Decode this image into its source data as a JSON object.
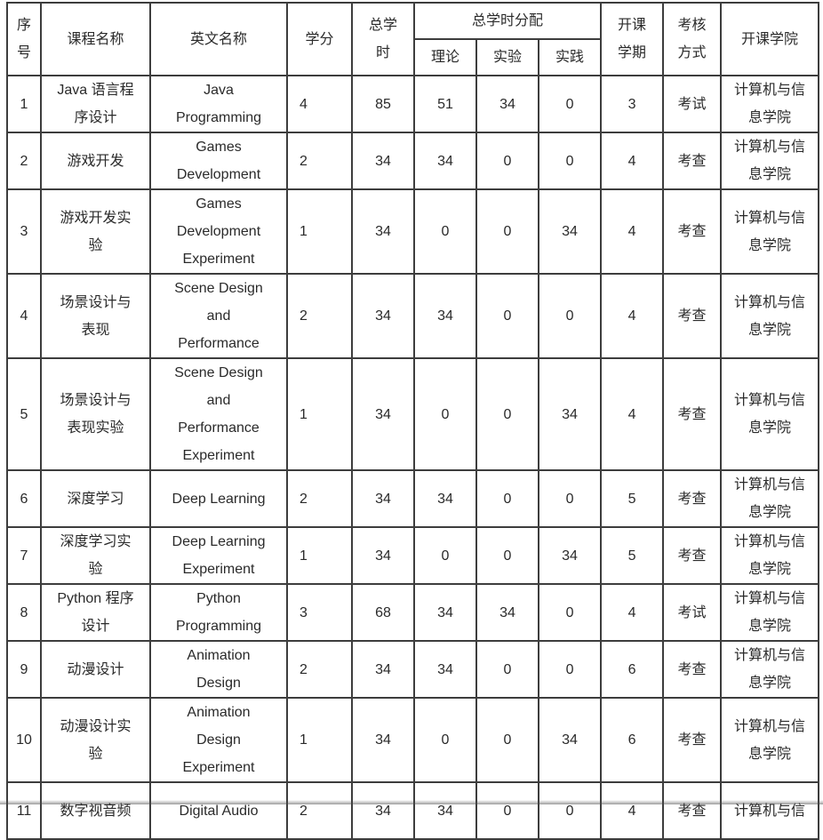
{
  "table": {
    "header": {
      "col_no": "序\n号",
      "col_course": "课程名称",
      "col_english": "英文名称",
      "col_credit": "学分",
      "col_total": "总学\n时",
      "col_alloc": "总学时分配",
      "col_theory": "理论",
      "col_exp": "实验",
      "col_practice": "实践",
      "col_semester": "开课\n学期",
      "col_assess": "考核\n方式",
      "col_college": "开课学院"
    },
    "rows": [
      {
        "no": "1",
        "course": "Java 语言程\n序设计",
        "english": "Java\nProgramming",
        "credit": "4",
        "total": "85",
        "theory": "51",
        "exp": "34",
        "practice": "0",
        "semester": "3",
        "assess": "考试",
        "college": "计算机与信\n息学院"
      },
      {
        "no": "2",
        "course": "游戏开发",
        "english": "Games\nDevelopment",
        "credit": "2",
        "total": "34",
        "theory": "34",
        "exp": "0",
        "practice": "0",
        "semester": "4",
        "assess": "考查",
        "college": "计算机与信\n息学院"
      },
      {
        "no": "3",
        "course": "游戏开发实\n验",
        "english": "Games\nDevelopment\nExperiment",
        "credit": "1",
        "total": "34",
        "theory": "0",
        "exp": "0",
        "practice": "34",
        "semester": "4",
        "assess": "考查",
        "college": "计算机与信\n息学院"
      },
      {
        "no": "4",
        "course": "场景设计与\n表现",
        "english": "Scene Design\nand\nPerformance",
        "credit": "2",
        "total": "34",
        "theory": "34",
        "exp": "0",
        "practice": "0",
        "semester": "4",
        "assess": "考查",
        "college": "计算机与信\n息学院"
      },
      {
        "no": "5",
        "course": "场景设计与\n表现实验",
        "english": "Scene Design\nand\nPerformance\nExperiment",
        "credit": "1",
        "total": "34",
        "theory": "0",
        "exp": "0",
        "practice": "34",
        "semester": "4",
        "assess": "考查",
        "college": "计算机与信\n息学院"
      },
      {
        "no": "6",
        "course": "深度学习",
        "english": "Deep Learning",
        "credit": "2",
        "total": "34",
        "theory": "34",
        "exp": "0",
        "practice": "0",
        "semester": "5",
        "assess": "考查",
        "college": "计算机与信\n息学院"
      },
      {
        "no": "7",
        "course": "深度学习实\n验",
        "english": "Deep Learning\nExperiment",
        "credit": "1",
        "total": "34",
        "theory": "0",
        "exp": "0",
        "practice": "34",
        "semester": "5",
        "assess": "考查",
        "college": "计算机与信\n息学院"
      },
      {
        "no": "8",
        "course": "Python 程序\n设计",
        "english": "Python\nProgramming",
        "credit": "3",
        "total": "68",
        "theory": "34",
        "exp": "34",
        "practice": "0",
        "semester": "4",
        "assess": "考试",
        "college": "计算机与信\n息学院"
      },
      {
        "no": "9",
        "course": "动漫设计",
        "english": "Animation\nDesign",
        "credit": "2",
        "total": "34",
        "theory": "34",
        "exp": "0",
        "practice": "0",
        "semester": "6",
        "assess": "考查",
        "college": "计算机与信\n息学院"
      },
      {
        "no": "10",
        "course": "动漫设计实\n验",
        "english": "Animation\nDesign\nExperiment",
        "credit": "1",
        "total": "34",
        "theory": "0",
        "exp": "0",
        "practice": "34",
        "semester": "6",
        "assess": "考查",
        "college": "计算机与信\n息学院"
      },
      {
        "no": "11",
        "course": "数字视音频",
        "english": "Digital Audio",
        "credit": "2",
        "total": "34",
        "theory": "34",
        "exp": "0",
        "practice": "0",
        "semester": "4",
        "assess": "考查",
        "college": "计算机与信"
      }
    ]
  }
}
